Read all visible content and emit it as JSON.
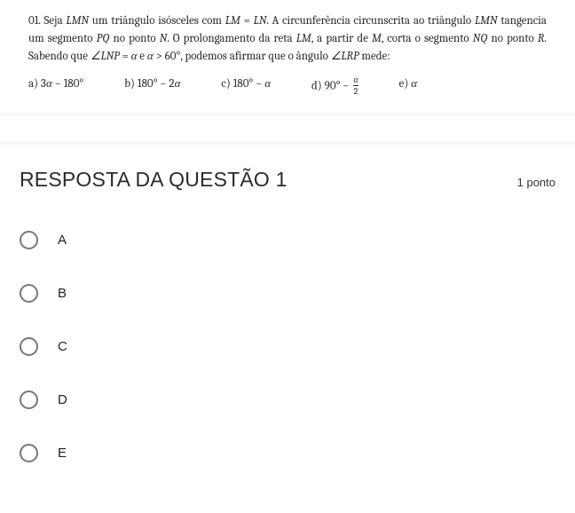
{
  "question": {
    "number": "01.",
    "line1_a": "Seja ",
    "lmn": "LMN",
    "line1_b": " um triângulo isósceles com ",
    "eq1_lhs": "LM",
    "eq1_eq": " = ",
    "eq1_rhs": "LN",
    "line1_c": ". A circunferência circunscrita ao triângulo ",
    "lmn2": "LMN",
    "line2_a": "tangencia um segmento ",
    "pq": "PQ",
    "line2_b": " no ponto ",
    "n1": "N",
    "line2_c": ". O prolongamento da reta ",
    "lm2": "LM",
    "line2_d": ", a partir de ",
    "m1": "M",
    "line2_e": ", corta o segmento",
    "line3_a_nq": "NQ",
    "line3_b": " no ponto ",
    "r1": "R",
    "line3_c": ". Sabendo que ",
    "ang1": "∠LNP",
    "eq2": " = ",
    "alpha1": "α",
    "line3_d": " e ",
    "alpha2": "α",
    "gt": " > 60°",
    "line3_e": ", podemos afirmar que o ângulo ",
    "ang2": "∠LRP",
    "line3_f": " mede:"
  },
  "options": {
    "a_prefix": "a) 3",
    "a_alpha": "α",
    "a_suffix": " − 180°",
    "b_prefix": "b) 180° − 2",
    "b_alpha": "α",
    "c_prefix": "c) 180° − ",
    "c_alpha": "α",
    "d_prefix": "d) 90° − ",
    "d_num": "α",
    "d_den": "2",
    "e_prefix": "e) ",
    "e_alpha": "α"
  },
  "answer": {
    "title": "RESPOSTA DA QUESTÃO 1",
    "points": "1 ponto",
    "choices": {
      "a": "A",
      "b": "B",
      "c": "C",
      "d": "D",
      "e": "E"
    }
  },
  "colors": {
    "text": "#2a2a2a",
    "radio_border": "#777777",
    "strip": "#f7f8fa"
  }
}
